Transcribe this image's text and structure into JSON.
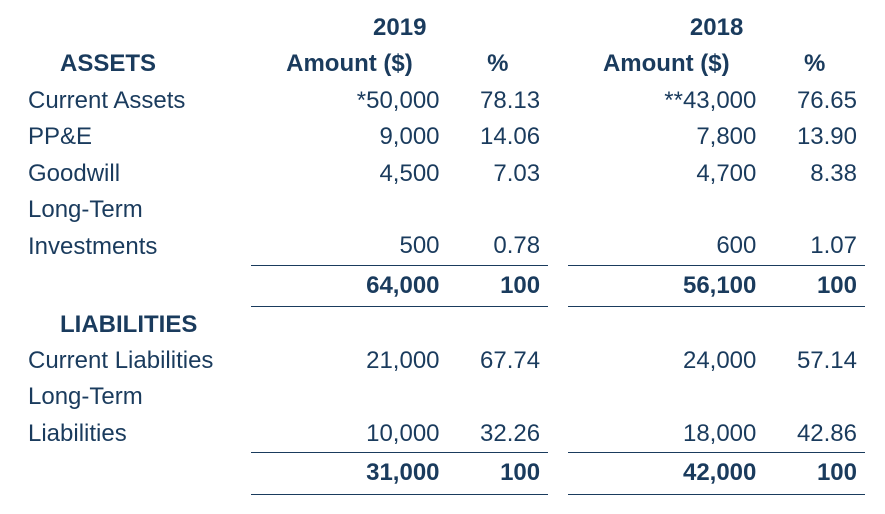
{
  "colors": {
    "text": "#1a3b5d",
    "rule": "#1a3b5d",
    "background": "#ffffff"
  },
  "typography": {
    "family": "Segoe UI / Helvetica Neue / Arial",
    "base_size_pt": 18,
    "bold_weight": 700
  },
  "structure": "financial-table",
  "years": {
    "y1": {
      "label": "2019",
      "amount_header": "Amount ($)",
      "pct_header": "%"
    },
    "y2": {
      "label": "2018",
      "amount_header": "Amount ($)",
      "pct_header": "%"
    }
  },
  "sections": {
    "assets": {
      "heading": "ASSETS",
      "rows": [
        {
          "label": "Current Assets",
          "y1_amount": "*50,000",
          "y1_pct": "78.13",
          "y2_amount": "**43,000",
          "y2_pct": "76.65"
        },
        {
          "label": "PP&E",
          "y1_amount": "9,000",
          "y1_pct": "14.06",
          "y2_amount": "7,800",
          "y2_pct": "13.90"
        },
        {
          "label": "Goodwill",
          "y1_amount": "4,500",
          "y1_pct": "7.03",
          "y2_amount": "4,700",
          "y2_pct": "8.38"
        },
        {
          "label_line1": "Long-Term",
          "label_line2": "Investments",
          "y1_amount": "500",
          "y1_pct": "0.78",
          "y2_amount": "600",
          "y2_pct": "1.07"
        }
      ],
      "total": {
        "y1_amount": "64,000",
        "y1_pct": "100",
        "y2_amount": "56,100",
        "y2_pct": "100"
      }
    },
    "liabilities": {
      "heading": "LIABILITIES",
      "rows": [
        {
          "label": "Current Liabilities",
          "y1_amount": "21,000",
          "y1_pct": "67.74",
          "y2_amount": "24,000",
          "y2_pct": "57.14"
        },
        {
          "label_line1": "Long-Term",
          "label_line2": "Liabilities",
          "y1_amount": "10,000",
          "y1_pct": "32.26",
          "y2_amount": "18,000",
          "y2_pct": "42.86"
        }
      ],
      "total": {
        "y1_amount": "31,000",
        "y1_pct": "100",
        "y2_amount": "42,000",
        "y2_pct": "100"
      }
    }
  }
}
